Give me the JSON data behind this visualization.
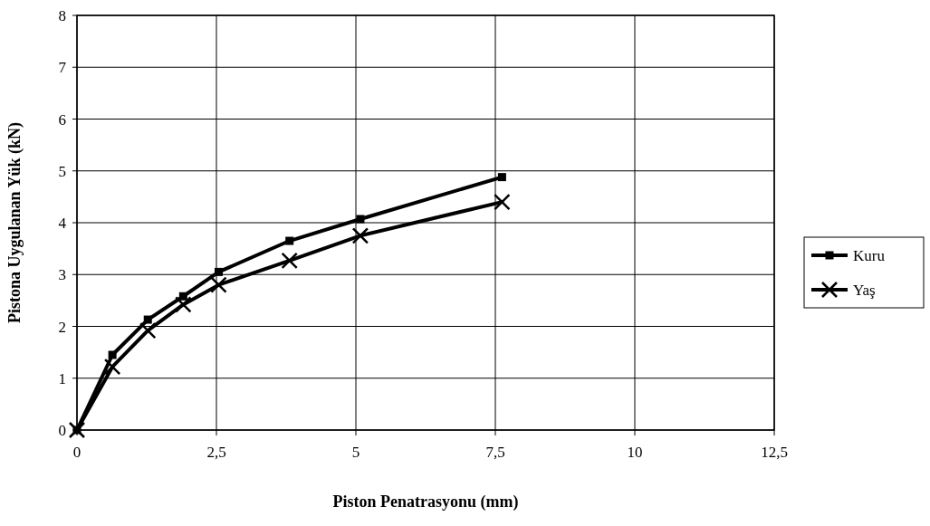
{
  "chart_data": {
    "type": "line",
    "xlabel": "Piston Penatrasyonu (mm)",
    "ylabel": "Pistona Uygulanan Yük (kN)",
    "x": [
      0,
      0.635,
      1.27,
      1.905,
      2.54,
      3.81,
      5.08,
      7.62
    ],
    "series": [
      {
        "name": "Kuru",
        "color": "#000000",
        "marker": "square",
        "values": [
          0,
          1.45,
          2.13,
          2.58,
          3.05,
          3.65,
          4.07,
          4.88
        ]
      },
      {
        "name": "Yaş",
        "color": "#000000",
        "marker": "cross",
        "values": [
          0,
          1.22,
          1.92,
          2.42,
          2.8,
          3.27,
          3.75,
          4.4
        ]
      }
    ],
    "xlim": [
      0,
      12.5
    ],
    "xticks": [
      0,
      {
        "value": 2.5,
        "label": "2,5"
      },
      5,
      {
        "value": 7.5,
        "label": "7,5"
      },
      10,
      {
        "value": 12.5,
        "label": "12,5"
      }
    ],
    "ylim": [
      0,
      8
    ],
    "yticks": [
      0,
      1,
      2,
      3,
      4,
      5,
      6,
      7,
      8
    ],
    "grid": true,
    "legend": "right",
    "line_style": "solid"
  }
}
